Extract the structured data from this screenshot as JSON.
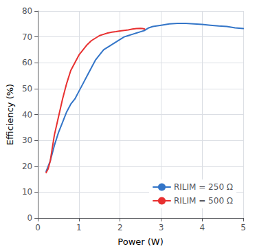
{
  "chart_data": {
    "type": "line",
    "xlabel": "Power (W)",
    "ylabel": "Efficiency (%)",
    "xlim": [
      0,
      5
    ],
    "ylim": [
      0,
      80
    ],
    "xticks": [
      0,
      1,
      2,
      3,
      4,
      5
    ],
    "yticks": [
      0,
      10,
      20,
      30,
      40,
      50,
      60,
      70,
      80
    ],
    "grid": true,
    "legend": "lower right",
    "series": [
      {
        "name": "RILIM = 250 Ω",
        "color": "#3375C8",
        "x": [
          0.2,
          0.3,
          0.4,
          0.5,
          0.6,
          0.7,
          0.8,
          0.9,
          1.0,
          1.1,
          1.2,
          1.3,
          1.4,
          1.5,
          1.6,
          1.7,
          1.8,
          1.9,
          2.0,
          2.1,
          2.2,
          2.3,
          2.4,
          2.5,
          2.6,
          2.7,
          2.8,
          3.0,
          3.2,
          3.4,
          3.6,
          3.8,
          4.0,
          4.2,
          4.4,
          4.6,
          4.8,
          5.0
        ],
        "values": [
          18,
          22,
          28,
          33,
          37,
          41,
          44,
          46,
          49,
          52,
          55,
          58,
          61,
          63,
          65,
          66,
          67,
          68,
          69,
          70,
          70.5,
          71,
          71.5,
          72,
          72.5,
          73.5,
          74,
          74.5,
          75,
          75.2,
          75.2,
          75.0,
          74.8,
          74.5,
          74.2,
          74.0,
          73.5,
          73.2
        ]
      },
      {
        "name": "RILIM = 500 Ω",
        "color": "#E83030",
        "x": [
          0.2,
          0.25,
          0.3,
          0.35,
          0.4,
          0.5,
          0.6,
          0.7,
          0.8,
          0.9,
          1.0,
          1.1,
          1.2,
          1.3,
          1.4,
          1.5,
          1.6,
          1.7,
          1.8,
          1.9,
          2.0,
          2.1,
          2.2,
          2.3,
          2.4,
          2.5,
          2.55,
          2.6
        ],
        "values": [
          17.5,
          19,
          22,
          27,
          32,
          39,
          46,
          52,
          57,
          60,
          63,
          65,
          67,
          68.5,
          69.5,
          70.5,
          71,
          71.5,
          71.8,
          72,
          72.3,
          72.5,
          72.7,
          73,
          73.2,
          73.3,
          73.2,
          73.0
        ]
      }
    ]
  }
}
